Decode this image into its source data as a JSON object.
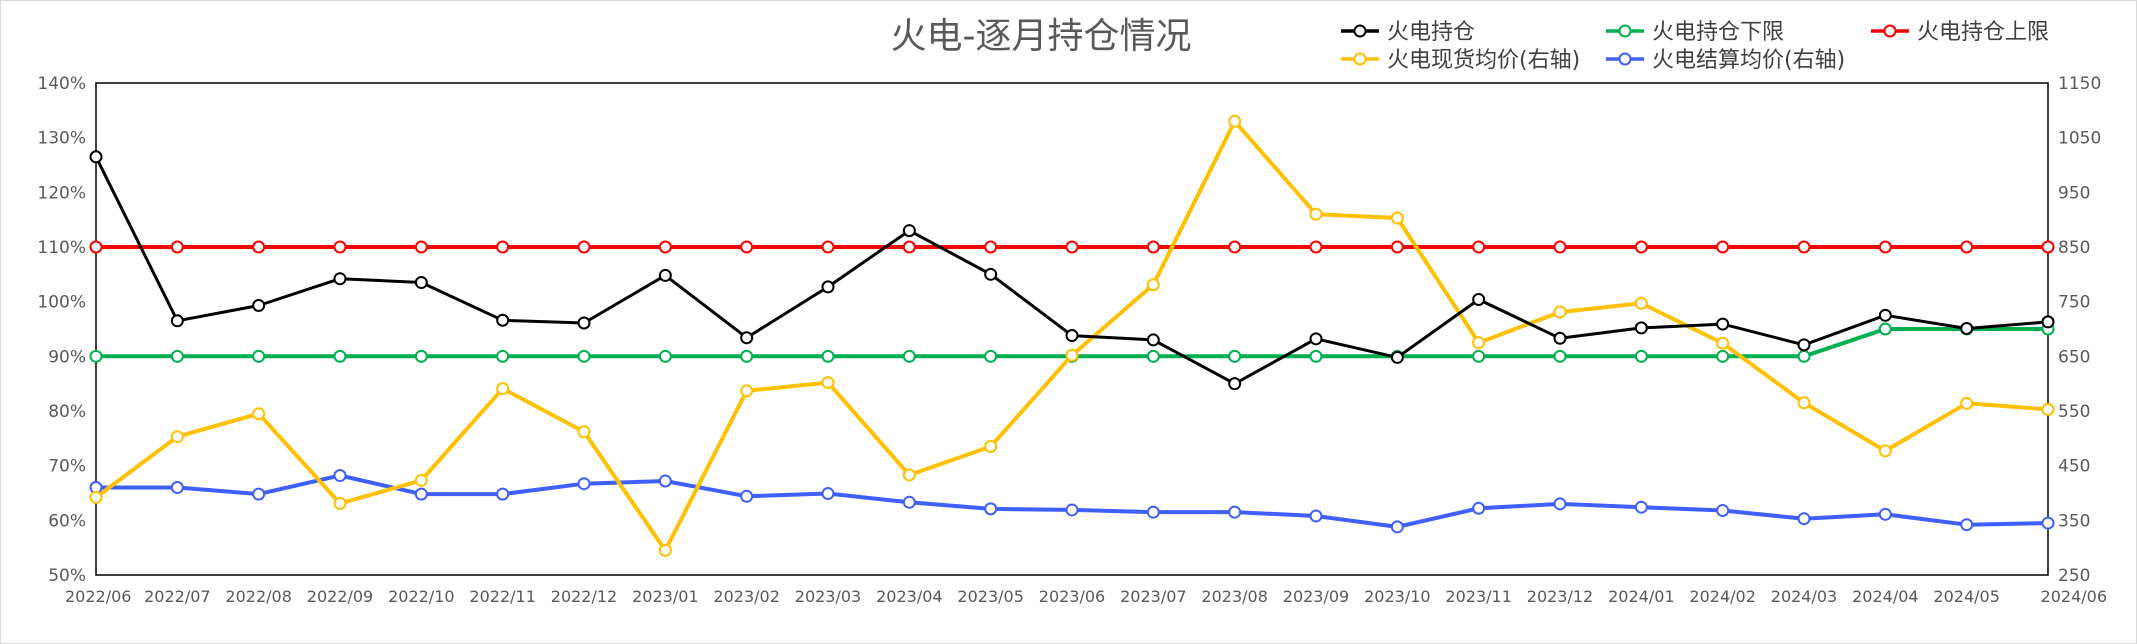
{
  "chart_data": {
    "type": "line",
    "title": "火电-逐月持仓情况",
    "x": [
      "2022/06",
      "2022/07",
      "2022/08",
      "2022/09",
      "2022/10",
      "2022/11",
      "2022/12",
      "2023/01",
      "2023/02",
      "2023/03",
      "2023/04",
      "2023/05",
      "2023/06",
      "2023/07",
      "2023/08",
      "2023/09",
      "2023/10",
      "2023/11",
      "2023/12",
      "2024/01",
      "2024/02",
      "2024/03",
      "2024/04",
      "2024/05",
      "2024/06"
    ],
    "y_left": {
      "ylim": [
        50,
        140
      ],
      "ticks": [
        "50%",
        "60%",
        "70%",
        "80%",
        "90%",
        "100%",
        "110%",
        "120%",
        "130%",
        "140%"
      ],
      "unit": "%"
    },
    "y_right": {
      "ylim": [
        250,
        1150
      ],
      "ticks": [
        "250",
        "350",
        "450",
        "550",
        "650",
        "750",
        "850",
        "950",
        "1050",
        "1150"
      ]
    },
    "grid": false,
    "legend_position": "top-right",
    "series": [
      {
        "name": "火电持仓",
        "axis": "left",
        "color": "#000000",
        "values": [
          126.5,
          96.5,
          99.3,
          104.2,
          103.5,
          96.6,
          96.1,
          104.8,
          93.4,
          102.7,
          113.0,
          105.0,
          93.8,
          93.0,
          85.0,
          93.2,
          89.8,
          100.4,
          93.3,
          95.2,
          95.9,
          92.1,
          97.5,
          95.1,
          96.3
        ]
      },
      {
        "name": "火电持仓下限",
        "axis": "left",
        "color": "#00b050",
        "values": [
          90,
          90,
          90,
          90,
          90,
          90,
          90,
          90,
          90,
          90,
          90,
          90,
          90,
          90,
          90,
          90,
          90,
          90,
          90,
          90,
          90,
          90,
          95,
          95,
          95
        ]
      },
      {
        "name": "火电持仓上限",
        "axis": "left",
        "color": "#ff0000",
        "values": [
          110,
          110,
          110,
          110,
          110,
          110,
          110,
          110,
          110,
          110,
          110,
          110,
          110,
          110,
          110,
          110,
          110,
          110,
          110,
          110,
          110,
          110,
          110,
          110,
          110
        ]
      },
      {
        "name": "火电现货均价(右轴)",
        "axis": "right",
        "color": "#ffc000",
        "values": [
          392,
          503,
          545,
          381,
          423,
          591,
          512,
          295,
          587,
          602,
          433,
          485,
          652,
          781,
          1080,
          910,
          903,
          675,
          731,
          747,
          674,
          565,
          477,
          564,
          553
        ]
      },
      {
        "name": "火电结算均价(右轴)",
        "axis": "right",
        "color": "#3f5fff",
        "values": [
          410,
          410,
          398,
          432,
          398,
          398,
          417,
          422,
          394,
          399,
          383,
          371,
          369,
          365,
          365,
          358,
          338,
          372,
          380,
          374,
          368,
          353,
          361,
          342,
          345
        ]
      }
    ]
  }
}
